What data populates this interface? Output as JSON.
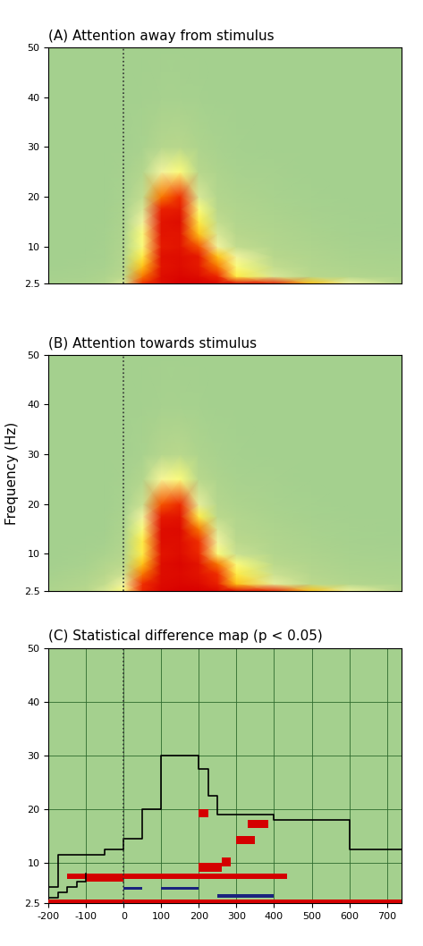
{
  "y_label": "Frequency (Hz)",
  "chart_data": [
    {
      "type": "heatmap",
      "title": "(A) Attention away from stimulus",
      "xlim": [
        -200,
        740
      ],
      "ylim": [
        2.5,
        50
      ],
      "yticks": [
        2.5,
        10,
        20,
        30,
        40,
        50
      ],
      "tick_labels": "y",
      "onset": 0,
      "x": [
        -200,
        -100,
        -50,
        0,
        50,
        100,
        150,
        200,
        250,
        300,
        400,
        500,
        600,
        740
      ],
      "y": [
        2.5,
        4,
        6,
        8,
        10,
        12.5,
        15,
        17.5,
        20,
        25,
        30,
        40,
        50
      ],
      "z": [
        [
          0.1,
          0.15,
          0.2,
          0.35,
          0.65,
          0.9,
          1.0,
          1.0,
          0.95,
          0.9,
          0.75,
          0.55,
          0.4,
          0.25
        ],
        [
          0.08,
          0.1,
          0.15,
          0.28,
          0.6,
          0.9,
          0.95,
          0.9,
          0.7,
          0.5,
          0.35,
          0.25,
          0.2,
          0.15
        ],
        [
          0.05,
          0.08,
          0.1,
          0.22,
          0.55,
          0.85,
          0.9,
          0.8,
          0.6,
          0.45,
          0.3,
          0.2,
          0.15,
          0.12
        ],
        [
          0.05,
          0.06,
          0.08,
          0.2,
          0.5,
          0.88,
          0.9,
          0.8,
          0.55,
          0.4,
          0.25,
          0.18,
          0.12,
          0.1
        ],
        [
          0.05,
          0.05,
          0.08,
          0.18,
          0.45,
          0.8,
          0.85,
          0.62,
          0.4,
          0.3,
          0.2,
          0.15,
          0.1,
          0.08
        ],
        [
          0.05,
          0.05,
          0.07,
          0.16,
          0.45,
          0.85,
          0.85,
          0.55,
          0.35,
          0.25,
          0.18,
          0.12,
          0.08,
          0.06
        ],
        [
          0.05,
          0.05,
          0.06,
          0.14,
          0.4,
          0.85,
          0.9,
          0.5,
          0.3,
          0.2,
          0.15,
          0.1,
          0.07,
          0.05
        ],
        [
          0.05,
          0.05,
          0.06,
          0.12,
          0.35,
          0.75,
          0.8,
          0.45,
          0.25,
          0.18,
          0.12,
          0.08,
          0.06,
          0.05
        ],
        [
          0.05,
          0.05,
          0.05,
          0.1,
          0.3,
          0.6,
          0.65,
          0.35,
          0.2,
          0.15,
          0.1,
          0.07,
          0.05,
          0.05
        ],
        [
          0.05,
          0.05,
          0.05,
          0.08,
          0.2,
          0.4,
          0.45,
          0.25,
          0.15,
          0.1,
          0.08,
          0.05,
          0.05,
          0.05
        ],
        [
          0.05,
          0.05,
          0.05,
          0.06,
          0.1,
          0.22,
          0.25,
          0.15,
          0.1,
          0.07,
          0.05,
          0.05,
          0.05,
          0.05
        ],
        [
          0.05,
          0.05,
          0.05,
          0.05,
          0.06,
          0.08,
          0.08,
          0.07,
          0.05,
          0.05,
          0.05,
          0.05,
          0.05,
          0.05
        ],
        [
          0.05,
          0.05,
          0.05,
          0.05,
          0.05,
          0.05,
          0.05,
          0.05,
          0.05,
          0.05,
          0.05,
          0.05,
          0.05,
          0.05
        ]
      ]
    },
    {
      "type": "heatmap",
      "title": "(B) Attention towards stimulus",
      "xlim": [
        -200,
        740
      ],
      "ylim": [
        2.5,
        50
      ],
      "yticks": [
        2.5,
        10,
        20,
        30,
        40,
        50
      ],
      "tick_labels": "y",
      "onset": 0,
      "x": [
        -200,
        -100,
        -50,
        0,
        50,
        100,
        150,
        200,
        250,
        300,
        400,
        500,
        600,
        740
      ],
      "y": [
        2.5,
        4,
        6,
        8,
        10,
        12.5,
        15,
        17.5,
        20,
        25,
        30,
        40,
        50
      ],
      "z": [
        [
          0.15,
          0.25,
          0.35,
          0.45,
          0.7,
          0.95,
          1.0,
          1.0,
          0.95,
          0.9,
          0.75,
          0.55,
          0.4,
          0.25
        ],
        [
          0.12,
          0.2,
          0.3,
          0.4,
          0.65,
          0.92,
          0.95,
          0.92,
          0.75,
          0.55,
          0.38,
          0.28,
          0.2,
          0.15
        ],
        [
          0.08,
          0.15,
          0.25,
          0.32,
          0.6,
          0.9,
          0.92,
          0.85,
          0.65,
          0.5,
          0.32,
          0.22,
          0.15,
          0.12
        ],
        [
          0.06,
          0.1,
          0.2,
          0.28,
          0.55,
          0.9,
          0.95,
          0.85,
          0.6,
          0.45,
          0.28,
          0.18,
          0.12,
          0.1
        ],
        [
          0.05,
          0.08,
          0.12,
          0.22,
          0.5,
          0.85,
          0.9,
          0.7,
          0.45,
          0.32,
          0.2,
          0.15,
          0.1,
          0.08
        ],
        [
          0.05,
          0.06,
          0.08,
          0.18,
          0.5,
          0.9,
          0.9,
          0.65,
          0.4,
          0.28,
          0.18,
          0.12,
          0.08,
          0.06
        ],
        [
          0.05,
          0.05,
          0.06,
          0.15,
          0.45,
          0.9,
          0.92,
          0.6,
          0.35,
          0.22,
          0.15,
          0.1,
          0.07,
          0.05
        ],
        [
          0.05,
          0.05,
          0.06,
          0.12,
          0.4,
          0.8,
          0.85,
          0.5,
          0.28,
          0.2,
          0.12,
          0.08,
          0.06,
          0.05
        ],
        [
          0.05,
          0.05,
          0.05,
          0.1,
          0.32,
          0.62,
          0.68,
          0.38,
          0.22,
          0.15,
          0.1,
          0.07,
          0.05,
          0.05
        ],
        [
          0.05,
          0.05,
          0.05,
          0.08,
          0.2,
          0.42,
          0.45,
          0.26,
          0.15,
          0.1,
          0.08,
          0.05,
          0.05,
          0.05
        ],
        [
          0.05,
          0.05,
          0.05,
          0.06,
          0.1,
          0.22,
          0.26,
          0.15,
          0.1,
          0.07,
          0.05,
          0.05,
          0.05,
          0.05
        ],
        [
          0.05,
          0.05,
          0.05,
          0.05,
          0.06,
          0.08,
          0.08,
          0.07,
          0.05,
          0.05,
          0.05,
          0.05,
          0.05,
          0.05
        ],
        [
          0.05,
          0.05,
          0.05,
          0.05,
          0.05,
          0.05,
          0.05,
          0.05,
          0.05,
          0.05,
          0.05,
          0.05,
          0.05,
          0.05
        ]
      ]
    },
    {
      "type": "difference_map",
      "title": "(C) Statistical difference map (p < 0.05)",
      "xlim": [
        -200,
        740
      ],
      "ylim": [
        2.5,
        50
      ],
      "xticks": [
        -200,
        -100,
        0,
        100,
        200,
        300,
        400,
        500,
        600,
        700
      ],
      "yticks": [
        2.5,
        10,
        20,
        30,
        40,
        50
      ],
      "grid": true,
      "onset": 0,
      "outline": [
        {
          "x": [
            -200,
            -175,
            -175,
            -50,
            -50,
            0,
            0,
            50,
            50,
            100,
            100,
            200,
            200,
            225,
            225,
            250,
            250,
            400,
            400,
            600,
            600,
            740
          ],
          "y": [
            5.5,
            5.5,
            11.5,
            11.5,
            12.5,
            12.5,
            14.5,
            14.5,
            20,
            20,
            30,
            30,
            27.5,
            27.5,
            22.5,
            22.5,
            19,
            19,
            18,
            18,
            12.5,
            12.5
          ]
        },
        {
          "x": [
            -200,
            -175,
            -175,
            -150,
            -150,
            -125,
            -125,
            -100,
            -100
          ],
          "y": [
            3.5,
            3.5,
            4.5,
            4.5,
            5.5,
            5.5,
            6.5,
            6.5,
            8
          ]
        }
      ],
      "cells": [
        {
          "x": [
            -200,
            740
          ],
          "y": [
            2.5,
            3.3
          ],
          "color": "#d40000"
        },
        {
          "x": [
            -150,
            435
          ],
          "y": [
            7,
            8
          ],
          "color": "#d40000"
        },
        {
          "x": [
            -100,
            0
          ],
          "y": [
            6.5,
            7
          ],
          "color": "#d40000"
        },
        {
          "x": [
            200,
            260
          ],
          "y": [
            8.4,
            10.1
          ],
          "color": "#d40000"
        },
        {
          "x": [
            260,
            285
          ],
          "y": [
            9.3,
            11
          ],
          "color": "#d40000"
        },
        {
          "x": [
            200,
            225
          ],
          "y": [
            18.5,
            20
          ],
          "color": "#d40000"
        },
        {
          "x": [
            330,
            385
          ],
          "y": [
            16.5,
            18
          ],
          "color": "#d40000"
        },
        {
          "x": [
            300,
            350
          ],
          "y": [
            13.5,
            15
          ],
          "color": "#d40000"
        },
        {
          "x": [
            0,
            50
          ],
          "y": [
            5,
            5.5
          ],
          "color": "#1a237e"
        },
        {
          "x": [
            100,
            200
          ],
          "y": [
            5,
            5.5
          ],
          "color": "#1a237e"
        },
        {
          "x": [
            250,
            400
          ],
          "y": [
            3.5,
            4.2
          ],
          "color": "#1a237e"
        }
      ]
    }
  ]
}
